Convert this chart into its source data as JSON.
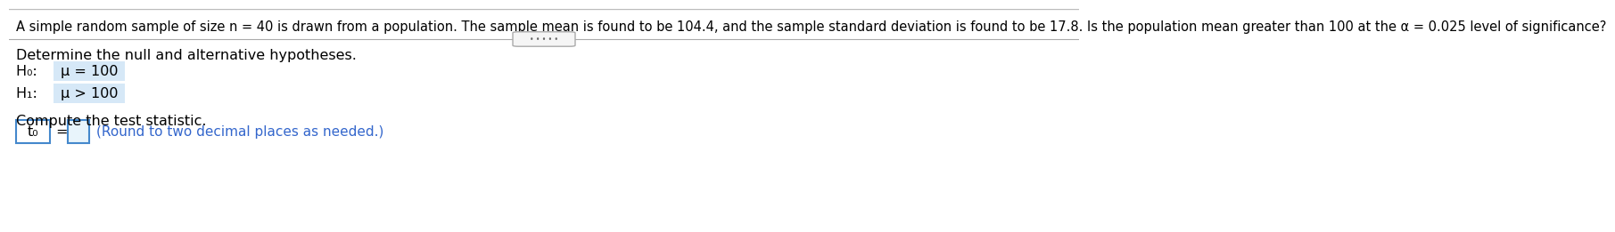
{
  "title_text": "A simple random sample of size n = 40 is drawn from a population. The sample mean is found to be 104.4, and the sample standard deviation is found to be 17.8. Is the population mean greater than 100 at the α = 0.025 level of significance?",
  "section1": "Determine the null and alternative hypotheses.",
  "h0_label": "H₀:  ",
  "h0_value": "μ = 100",
  "h1_label": "H₁:  ",
  "h1_value": "μ > 100",
  "section2": "Compute the test statistic.",
  "t0_label": "t₀",
  "equals": " = ",
  "round_note": "(Round to two decimal places as needed.)",
  "bg_color": "#ffffff",
  "text_color": "#000000",
  "blue_color": "#3366cc",
  "dots": "• • • • •",
  "title_fontsize": 10.5,
  "label_fontsize": 11.5,
  "body_fontsize": 11.5,
  "note_fontsize": 11.0
}
